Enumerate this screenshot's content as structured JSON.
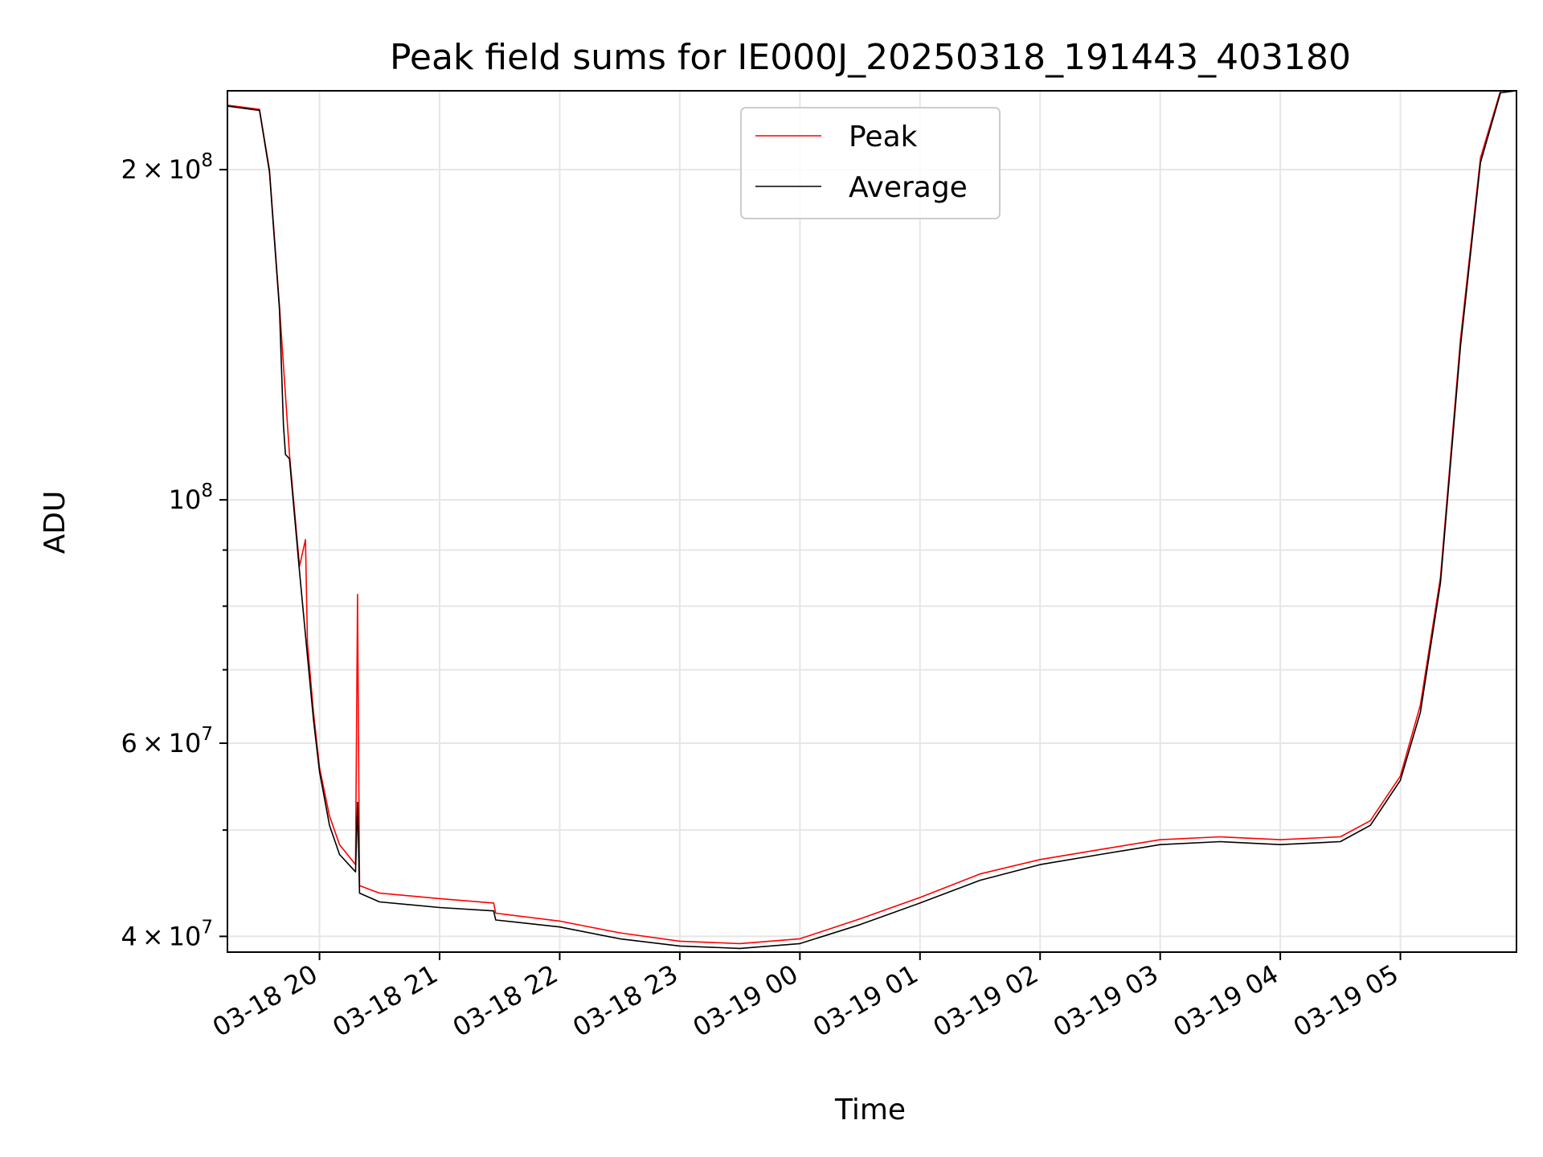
{
  "chart_data": {
    "type": "line",
    "title": "Peak field sums for IE000J_20250318_191443_403180",
    "xlabel": "Time",
    "ylabel": "ADU",
    "yscale": "log",
    "grid": true,
    "legend_position": "top-center",
    "x_ticks": [
      {
        "time": "2025-03-18T20:00",
        "label": "03-18 20"
      },
      {
        "time": "2025-03-18T21:00",
        "label": "03-18 21"
      },
      {
        "time": "2025-03-18T22:00",
        "label": "03-18 22"
      },
      {
        "time": "2025-03-18T23:00",
        "label": "03-18 23"
      },
      {
        "time": "2025-03-19T00:00",
        "label": "03-19 00"
      },
      {
        "time": "2025-03-19T01:00",
        "label": "03-19 01"
      },
      {
        "time": "2025-03-19T02:00",
        "label": "03-19 02"
      },
      {
        "time": "2025-03-19T03:00",
        "label": "03-19 03"
      },
      {
        "time": "2025-03-19T04:00",
        "label": "03-19 04"
      },
      {
        "time": "2025-03-19T05:00",
        "label": "03-19 05"
      }
    ],
    "y_major_ticks": [
      {
        "value": 40000000,
        "base": "4",
        "exp": "7"
      },
      {
        "value": 60000000,
        "base": "6",
        "exp": "7"
      },
      {
        "value": 100000000,
        "base": "",
        "exp": "8"
      },
      {
        "value": 200000000,
        "base": "2",
        "exp": "8"
      }
    ],
    "y_minor_ticks": [
      50000000,
      70000000,
      80000000,
      90000000
    ],
    "xlim": [
      "2025-03-18T19:14",
      "2025-03-19T05:58"
    ],
    "ylim": [
      38700000,
      236000000
    ],
    "series": [
      {
        "name": "Peak",
        "color": "#ff0000",
        "points": [
          [
            "2025-03-18T19:14",
            229000000
          ],
          [
            "2025-03-18T19:30",
            227000000
          ],
          [
            "2025-03-18T19:35",
            200000000
          ],
          [
            "2025-03-18T19:40",
            150000000
          ],
          [
            "2025-03-18T19:45",
            110000000
          ],
          [
            "2025-03-18T19:50",
            87000000
          ],
          [
            "2025-03-18T19:53",
            92000000
          ],
          [
            "2025-03-18T19:54",
            74000000
          ],
          [
            "2025-03-18T19:57",
            64000000
          ],
          [
            "2025-03-18T20:00",
            57000000
          ],
          [
            "2025-03-18T20:05",
            51500000
          ],
          [
            "2025-03-18T20:10",
            48500000
          ],
          [
            "2025-03-18T20:18",
            46500000
          ],
          [
            "2025-03-18T20:19",
            82000000
          ],
          [
            "2025-03-18T20:20",
            44500000
          ],
          [
            "2025-03-18T20:30",
            43800000
          ],
          [
            "2025-03-18T21:00",
            43300000
          ],
          [
            "2025-03-18T21:27",
            42900000
          ],
          [
            "2025-03-18T21:28",
            42000000
          ],
          [
            "2025-03-18T22:00",
            41300000
          ],
          [
            "2025-03-18T22:30",
            40300000
          ],
          [
            "2025-03-18T23:00",
            39600000
          ],
          [
            "2025-03-18T23:30",
            39400000
          ],
          [
            "2025-03-19T00:00",
            39800000
          ],
          [
            "2025-03-19T00:30",
            41500000
          ],
          [
            "2025-03-19T01:00",
            43400000
          ],
          [
            "2025-03-19T01:30",
            45600000
          ],
          [
            "2025-03-19T02:00",
            47000000
          ],
          [
            "2025-03-19T02:30",
            48000000
          ],
          [
            "2025-03-19T03:00",
            49000000
          ],
          [
            "2025-03-19T03:30",
            49300000
          ],
          [
            "2025-03-19T04:00",
            49000000
          ],
          [
            "2025-03-19T04:30",
            49300000
          ],
          [
            "2025-03-19T04:45",
            51000000
          ],
          [
            "2025-03-19T05:00",
            56000000
          ],
          [
            "2025-03-19T05:10",
            65000000
          ],
          [
            "2025-03-19T05:20",
            85000000
          ],
          [
            "2025-03-19T05:30",
            140000000
          ],
          [
            "2025-03-19T05:40",
            205000000
          ],
          [
            "2025-03-19T05:50",
            236000000
          ],
          [
            "2025-03-19T05:58",
            236000000
          ]
        ]
      },
      {
        "name": "Average",
        "color": "#000000",
        "points": [
          [
            "2025-03-18T19:14",
            228500000
          ],
          [
            "2025-03-18T19:30",
            226500000
          ],
          [
            "2025-03-18T19:35",
            199000000
          ],
          [
            "2025-03-18T19:40",
            149000000
          ],
          [
            "2025-03-18T19:42",
            117000000
          ],
          [
            "2025-03-18T19:43",
            110000000
          ],
          [
            "2025-03-18T19:45",
            109000000
          ],
          [
            "2025-03-18T19:50",
            86000000
          ],
          [
            "2025-03-18T19:54",
            72000000
          ],
          [
            "2025-03-18T19:57",
            63000000
          ],
          [
            "2025-03-18T20:00",
            56500000
          ],
          [
            "2025-03-18T20:05",
            50500000
          ],
          [
            "2025-03-18T20:10",
            47500000
          ],
          [
            "2025-03-18T20:18",
            45800000
          ],
          [
            "2025-03-18T20:19",
            53000000
          ],
          [
            "2025-03-18T20:20",
            43800000
          ],
          [
            "2025-03-18T20:30",
            43000000
          ],
          [
            "2025-03-18T21:00",
            42500000
          ],
          [
            "2025-03-18T21:27",
            42200000
          ],
          [
            "2025-03-18T21:28",
            41400000
          ],
          [
            "2025-03-18T22:00",
            40800000
          ],
          [
            "2025-03-18T22:30",
            39800000
          ],
          [
            "2025-03-18T23:00",
            39200000
          ],
          [
            "2025-03-18T23:30",
            39000000
          ],
          [
            "2025-03-19T00:00",
            39400000
          ],
          [
            "2025-03-19T00:30",
            41000000
          ],
          [
            "2025-03-19T01:00",
            42900000
          ],
          [
            "2025-03-19T01:30",
            45000000
          ],
          [
            "2025-03-19T02:00",
            46500000
          ],
          [
            "2025-03-19T02:30",
            47500000
          ],
          [
            "2025-03-19T03:00",
            48500000
          ],
          [
            "2025-03-19T03:30",
            48800000
          ],
          [
            "2025-03-19T04:00",
            48500000
          ],
          [
            "2025-03-19T04:30",
            48800000
          ],
          [
            "2025-03-19T04:45",
            50500000
          ],
          [
            "2025-03-19T05:00",
            55500000
          ],
          [
            "2025-03-19T05:10",
            64000000
          ],
          [
            "2025-03-19T05:20",
            84000000
          ],
          [
            "2025-03-19T05:30",
            138000000
          ],
          [
            "2025-03-19T05:40",
            203000000
          ],
          [
            "2025-03-19T05:50",
            235000000
          ],
          [
            "2025-03-19T05:58",
            236000000
          ]
        ]
      }
    ]
  }
}
